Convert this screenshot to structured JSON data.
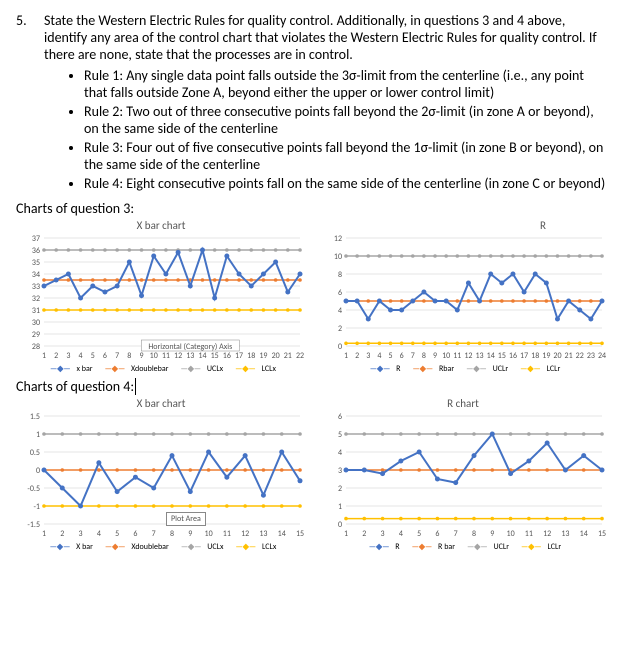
{
  "question": {
    "number": "5.",
    "prompt": "State the Western Electric Rules for quality control. Additionally, in questions 3 and 4 above, identify any area of the control chart that violates the Western Electric Rules for quality control. If there are none, state that the processes are in control.",
    "rules": [
      "Rule 1: Any single data point falls outside the 3σ-limit from the centerline (i.e., any point that falls outside Zone A, beyond either the upper or lower control limit)",
      "Rule 2: Two out of three consecutive points fall beyond the 2σ-limit (in zone A or beyond), on the same side of the centerline",
      "Rule 3: Four out of five consecutive points fall beyond the 1σ-limit (in zone B or beyond), on the same side of the centerline",
      "Rule 4: Eight consecutive points fall on the same side of the centerline (in zone C or beyond)"
    ]
  },
  "sections": {
    "q3_label": "Charts of question 3:",
    "q4_label": "Charts of question 4:"
  },
  "chart_q3_xbar": {
    "type": "line",
    "title": "X bar chart",
    "x": [
      1,
      2,
      3,
      4,
      5,
      6,
      7,
      8,
      9,
      10,
      11,
      12,
      13,
      14,
      15,
      16,
      17,
      18,
      19,
      20,
      21,
      22
    ],
    "series": {
      "xbar": {
        "color": "#4472c4",
        "values": [
          33,
          33.5,
          34,
          32,
          33,
          32.5,
          33,
          35,
          32.2,
          35.5,
          34,
          35.8,
          33,
          36,
          32,
          35.5,
          34,
          33,
          34,
          35,
          32.5,
          34
        ]
      },
      "xdoublebar": {
        "color": "#ed7d31",
        "value": 33.5
      },
      "uclx": {
        "color": "#a5a5a5",
        "value": 36
      },
      "lclx": {
        "color": "#ffc000",
        "value": 31
      }
    },
    "ylim": [
      28,
      37
    ],
    "ytick_step": 1,
    "grid_color": "#e5e5e5",
    "axis_label": "Horizontal (Category) Axis",
    "legend": [
      "x bar",
      "Xdoublebar",
      "UCLx",
      "LCLx"
    ]
  },
  "chart_q3_r": {
    "type": "line",
    "title": "R",
    "x": [
      1,
      2,
      3,
      4,
      5,
      6,
      7,
      8,
      9,
      10,
      11,
      12,
      13,
      14,
      15,
      16,
      17,
      18,
      19,
      20,
      21,
      22,
      23,
      24
    ],
    "series": {
      "r": {
        "color": "#4472c4",
        "values": [
          5,
          5,
          3,
          5,
          4,
          4,
          5,
          6,
          5,
          5,
          4,
          7,
          5,
          8,
          7,
          8,
          6,
          8,
          7,
          3,
          5,
          4,
          3,
          5
        ]
      },
      "rbar": {
        "color": "#ed7d31",
        "value": 5
      },
      "uclr": {
        "color": "#a5a5a5",
        "value": 10
      },
      "lclr": {
        "color": "#ffc000",
        "value": 0.3
      }
    },
    "ylim": [
      0,
      12
    ],
    "ytick_step": 2,
    "grid_color": "#e5e5e5",
    "legend": [
      "R",
      "Rbar",
      "UCLr",
      "LCLr"
    ]
  },
  "chart_q4_xbar": {
    "type": "line",
    "title": "X bar chart",
    "x": [
      1,
      2,
      3,
      4,
      5,
      6,
      7,
      8,
      9,
      10,
      11,
      12,
      13,
      14,
      15
    ],
    "series": {
      "xbar": {
        "color": "#4472c4",
        "values": [
          0.0,
          -0.5,
          -1.0,
          0.2,
          -0.6,
          -0.2,
          -0.5,
          0.4,
          -0.6,
          0.5,
          -0.2,
          0.4,
          -0.7,
          0.5,
          -0.3
        ]
      },
      "xdoublebar": {
        "color": "#ed7d31",
        "value": 0.0
      },
      "uclx": {
        "color": "#a5a5a5",
        "value": 1.0
      },
      "lclx": {
        "color": "#ffc000",
        "value": -1.0
      }
    },
    "ylim": [
      -1.5,
      1.5
    ],
    "ytick_step": 0.5,
    "grid_color": "#e5e5e5",
    "legend": [
      "X bar",
      "Xdoublebar",
      "UCLx",
      "LCLx"
    ],
    "plot_area_label": "Plot Area"
  },
  "chart_q4_r": {
    "type": "line",
    "title": "R chart",
    "x": [
      1,
      2,
      3,
      4,
      5,
      6,
      7,
      8,
      9,
      10,
      11,
      12,
      13,
      14,
      15
    ],
    "series": {
      "r": {
        "color": "#4472c4",
        "values": [
          3,
          3,
          2.8,
          3.5,
          4,
          2.5,
          2.3,
          3.8,
          5,
          2.8,
          3.5,
          4.5,
          3,
          3.8,
          3
        ]
      },
      "rbar": {
        "color": "#ed7d31",
        "value": 3
      },
      "uclr": {
        "color": "#a5a5a5",
        "value": 5
      },
      "lclr": {
        "color": "#ffc000",
        "value": 0.3
      }
    },
    "ylim": [
      0,
      6
    ],
    "ytick_step": 1,
    "grid_color": "#e5e5e5",
    "legend": [
      "R",
      "R bar",
      "UCLr",
      "LCLr"
    ]
  },
  "colors": {
    "marker": "#4472c4"
  }
}
